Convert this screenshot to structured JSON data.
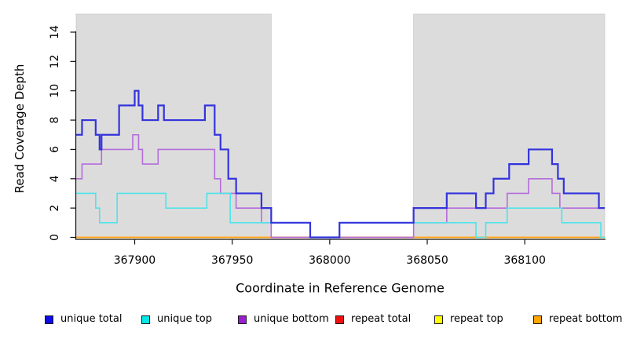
{
  "chart_data": {
    "type": "line",
    "subtype": "step-coverage",
    "title": "",
    "xlabel": "Coordinate in Reference Genome",
    "ylabel": "Read Coverage Depth",
    "xlim": [
      367870,
      368141
    ],
    "ylim": [
      0,
      15.3
    ],
    "grid": false,
    "legend_position": "bottom",
    "background_color": "#ffffff",
    "shaded_region_color": "#dcdcdc",
    "shaded_regions": [
      [
        367870,
        367970
      ],
      [
        368043,
        368141
      ]
    ],
    "x_axis": {
      "ticks": [
        367900,
        367950,
        368000,
        368050,
        368100
      ]
    },
    "y_axis": {
      "ticks": [
        0,
        2,
        4,
        6,
        8,
        10,
        12,
        14
      ]
    },
    "series": [
      {
        "name": "repeat top",
        "slug": "repeat-top",
        "legend_color": "#ffff00",
        "line_color": "#ffff4d",
        "line_width": 1.5,
        "zorder": 1,
        "end": 368141,
        "steps": [
          [
            367870,
            0
          ]
        ]
      },
      {
        "name": "repeat bottom",
        "slug": "repeat-bottom",
        "legend_color": "#ffa500",
        "line_color": "#ffa41c",
        "line_width": 2,
        "zorder": 2,
        "end": 368141,
        "steps": [
          [
            367870,
            0
          ]
        ]
      },
      {
        "name": "repeat total",
        "slug": "repeat-total",
        "legend_color": "#ee1010",
        "line_color": "#d6505f",
        "line_width": 1.5,
        "zorder": 3,
        "end": 368043,
        "steps": [
          [
            367970,
            0
          ]
        ]
      },
      {
        "name": "unique bottom",
        "slug": "unique-bottom",
        "legend_color": "#9a1fd1",
        "line_color": "#b46cdb",
        "line_width": 1.6,
        "zorder": 4,
        "end": 368141,
        "steps": [
          [
            367870,
            4
          ],
          [
            367873,
            5
          ],
          [
            367883,
            6
          ],
          [
            367899,
            7
          ],
          [
            367902,
            6
          ],
          [
            367904,
            5
          ],
          [
            367912,
            6
          ],
          [
            367941,
            4
          ],
          [
            367944,
            3
          ],
          [
            367952,
            2
          ],
          [
            367965,
            1
          ],
          [
            367970,
            0
          ],
          [
            368043,
            1
          ],
          [
            368060,
            2
          ],
          [
            368091,
            3
          ],
          [
            368102,
            4
          ],
          [
            368114,
            3
          ],
          [
            368118,
            2
          ]
        ]
      },
      {
        "name": "unique top",
        "slug": "unique-top",
        "legend_color": "#00e8e8",
        "line_color": "#4fe3e8",
        "line_width": 1.6,
        "zorder": 5,
        "end": 368141,
        "steps": [
          [
            367870,
            3
          ],
          [
            367880,
            2
          ],
          [
            367882,
            1
          ],
          [
            367891,
            3
          ],
          [
            367916,
            2
          ],
          [
            367937,
            3
          ],
          [
            367949,
            1
          ],
          [
            367990,
            0
          ],
          [
            368005,
            1
          ],
          [
            368075,
            0
          ],
          [
            368080,
            1
          ],
          [
            368091,
            2
          ],
          [
            368119,
            1
          ],
          [
            368139,
            0
          ]
        ]
      },
      {
        "name": "unique total",
        "slug": "unique-total",
        "legend_color": "#0c0ce8",
        "line_color": "#3333dd",
        "line_width": 2.2,
        "zorder": 6,
        "end": 368141,
        "steps": [
          [
            367870,
            7
          ],
          [
            367873,
            8
          ],
          [
            367880,
            7
          ],
          [
            367882,
            6
          ],
          [
            367883,
            7
          ],
          [
            367892,
            9
          ],
          [
            367900,
            10
          ],
          [
            367902,
            9
          ],
          [
            367904,
            8
          ],
          [
            367912,
            9
          ],
          [
            367915,
            8
          ],
          [
            367936,
            9
          ],
          [
            367941,
            7
          ],
          [
            367944,
            6
          ],
          [
            367948,
            4
          ],
          [
            367952,
            3
          ],
          [
            367965,
            2
          ],
          [
            367970,
            1
          ],
          [
            367990,
            0
          ],
          [
            368005,
            1
          ],
          [
            368043,
            2
          ],
          [
            368060,
            3
          ],
          [
            368075,
            2
          ],
          [
            368080,
            3
          ],
          [
            368084,
            4
          ],
          [
            368092,
            5
          ],
          [
            368102,
            6
          ],
          [
            368114,
            5
          ],
          [
            368117,
            4
          ],
          [
            368120,
            3
          ],
          [
            368138,
            2
          ]
        ]
      }
    ],
    "legend": {
      "items": [
        {
          "label": "unique total",
          "color": "#0c0ce8",
          "slug": "unique-total"
        },
        {
          "label": "unique top",
          "color": "#00e8e8",
          "slug": "unique-top"
        },
        {
          "label": "unique bottom",
          "color": "#9a1fd1",
          "slug": "unique-bottom"
        },
        {
          "label": "repeat total",
          "color": "#ee1010",
          "slug": "repeat-total"
        },
        {
          "label": "repeat top",
          "color": "#ffff00",
          "slug": "repeat-top"
        },
        {
          "label": "repeat bottom",
          "color": "#ffa500",
          "slug": "repeat-bottom"
        }
      ]
    }
  }
}
